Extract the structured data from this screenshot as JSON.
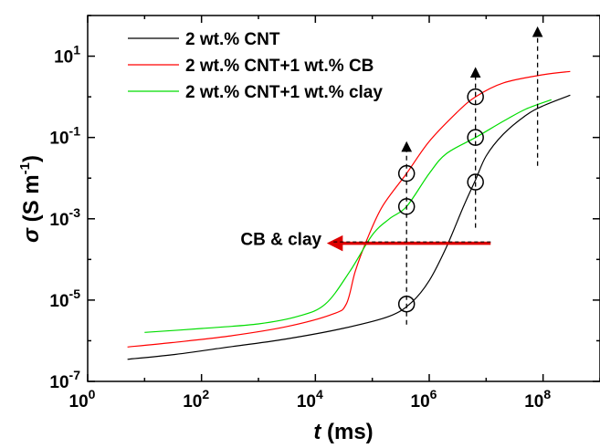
{
  "chart_data": {
    "type": "line",
    "xscale": "log",
    "yscale": "log",
    "xlim": [
      1,
      1000000000
    ],
    "ylim": [
      1e-07,
      100
    ],
    "x_ticks": [
      {
        "value": 1,
        "mantissa": "10",
        "exp": "0"
      },
      {
        "value": 100,
        "mantissa": "10",
        "exp": "2"
      },
      {
        "value": 10000,
        "mantissa": "10",
        "exp": "4"
      },
      {
        "value": 1000000,
        "mantissa": "10",
        "exp": "6"
      },
      {
        "value": 100000000,
        "mantissa": "10",
        "exp": "8"
      }
    ],
    "y_ticks": [
      {
        "value": 1e-07,
        "mantissa": "10",
        "exp": "-7"
      },
      {
        "value": 1e-05,
        "mantissa": "10",
        "exp": "-5"
      },
      {
        "value": 0.001,
        "mantissa": "10",
        "exp": "-3"
      },
      {
        "value": 0.1,
        "mantissa": "10",
        "exp": "-1"
      },
      {
        "value": 10,
        "mantissa": "10",
        "exp": "1"
      }
    ],
    "xlabel": {
      "symbol": "t",
      "unit": " (ms)"
    },
    "ylabel": {
      "symbol": "σ",
      "unit": " (S m",
      "exp": "-1",
      "close": ")"
    },
    "legend_position": "top-left",
    "series": [
      {
        "name": "2 wt.% CNT",
        "color": "#000000",
        "points": [
          [
            5,
            3.5e-07
          ],
          [
            30,
            4.5e-07
          ],
          [
            300,
            7e-07
          ],
          [
            3000,
            1.1e-06
          ],
          [
            30000,
            2e-06
          ],
          [
            200000,
            4e-06
          ],
          [
            500000,
            9e-06
          ],
          [
            1000000,
            3e-05
          ],
          [
            2000000,
            0.0002
          ],
          [
            4000000,
            0.002
          ],
          [
            6500000,
            0.009
          ],
          [
            10000000,
            0.035
          ],
          [
            20000000,
            0.12
          ],
          [
            50000000,
            0.35
          ],
          [
            100000000,
            0.6
          ],
          [
            300000000,
            1.1
          ]
        ]
      },
      {
        "name": "2 wt.% CNT+1 wt.% CB",
        "color": "#ff0000",
        "points": [
          [
            5,
            7e-07
          ],
          [
            30,
            9e-07
          ],
          [
            300,
            1.3e-06
          ],
          [
            3000,
            2.2e-06
          ],
          [
            20000,
            4.5e-06
          ],
          [
            35000,
            8e-06
          ],
          [
            50000,
            5e-05
          ],
          [
            80000,
            0.0003
          ],
          [
            150000,
            0.002
          ],
          [
            400000,
            0.013
          ],
          [
            1000000,
            0.08
          ],
          [
            3000000,
            0.4
          ],
          [
            6500000,
            1.0
          ],
          [
            20000000,
            2.2
          ],
          [
            100000000,
            3.5
          ],
          [
            300000000,
            4.2
          ]
        ]
      },
      {
        "name": "2 wt.% CNT+1 wt.% clay",
        "color": "#00dd00",
        "points": [
          [
            10,
            1.6e-06
          ],
          [
            100,
            2e-06
          ],
          [
            1000,
            2.6e-06
          ],
          [
            5000,
            4e-06
          ],
          [
            15000,
            8e-06
          ],
          [
            40000,
            5e-05
          ],
          [
            100000,
            0.0004
          ],
          [
            200000,
            0.001
          ],
          [
            400000,
            0.002
          ],
          [
            1000000,
            0.013
          ],
          [
            2000000,
            0.04
          ],
          [
            6500000,
            0.1
          ],
          [
            20000000,
            0.25
          ],
          [
            50000000,
            0.5
          ],
          [
            140000000,
            0.85
          ]
        ]
      }
    ],
    "markers": [
      {
        "x": 400000,
        "y": 0.013
      },
      {
        "x": 400000,
        "y": 0.002
      },
      {
        "x": 400000,
        "y": 8e-06
      },
      {
        "x": 6500000,
        "y": 1.0
      },
      {
        "x": 6500000,
        "y": 0.1
      },
      {
        "x": 6500000,
        "y": 0.008
      }
    ],
    "dashed_arrows": [
      {
        "x": 400000,
        "y_from": 2.5e-06,
        "y_to": 0.06
      },
      {
        "x": 6500000,
        "y_from": 0.0006,
        "y_to": 4
      },
      {
        "x": 80000000,
        "y_from": 0.02,
        "y_to": 40
      }
    ],
    "annotation": {
      "text": "CB & clay",
      "arrow_color": "#dd0000",
      "x_from": 12000000,
      "x_to": 20000,
      "y": 0.00025
    }
  }
}
